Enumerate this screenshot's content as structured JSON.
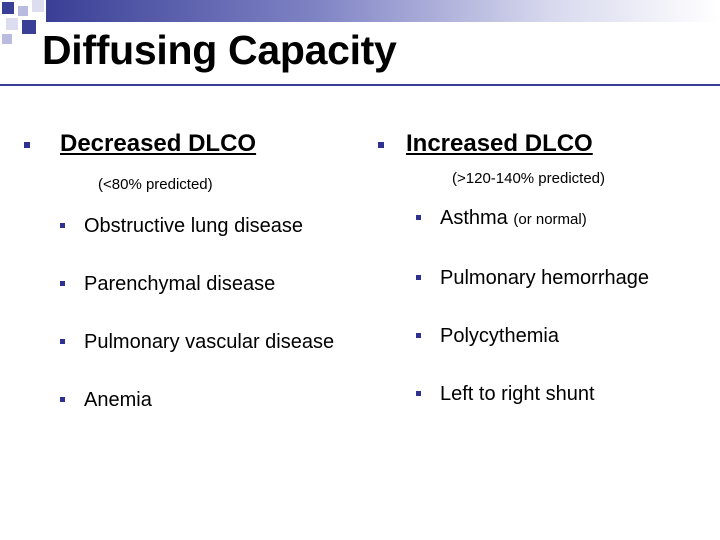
{
  "slide": {
    "title": "Diffusing Capacity",
    "accent_color": "#2e3192"
  },
  "left": {
    "heading": "Decreased DLCO",
    "note": "(<80% predicted)",
    "items": [
      {
        "text": "Obstructive lung disease"
      },
      {
        "text": "Parenchymal disease"
      },
      {
        "text": "Pulmonary vascular disease"
      },
      {
        "text": "Anemia"
      }
    ]
  },
  "right": {
    "heading": "Increased DLCO",
    "note": "(>120-140% predicted)",
    "items": [
      {
        "text": "Asthma",
        "note": "(or normal)"
      },
      {
        "text": "Pulmonary hemorrhage"
      },
      {
        "text": "Polycythemia"
      },
      {
        "text": "Left to right shunt"
      }
    ]
  }
}
